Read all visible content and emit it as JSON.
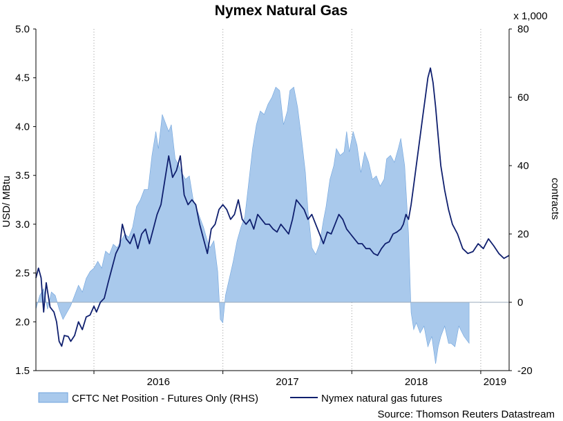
{
  "chart_data": {
    "type": "area+line",
    "title": "Nymex Natural Gas",
    "y_left": {
      "label": "USD/ MBtu",
      "range": [
        1.5,
        5.0
      ],
      "ticks": [
        "1.5",
        "2.0",
        "2.5",
        "3.0",
        "3.5",
        "4.0",
        "4.5",
        "5.0"
      ]
    },
    "y_right": {
      "label": "contracts",
      "multiplier_label": "x 1,000",
      "range": [
        -20,
        80
      ],
      "ticks": [
        "-20",
        "0",
        "20",
        "40",
        "60",
        "80"
      ]
    },
    "x": {
      "range": [
        2015.55,
        2019.22
      ],
      "ticks": [
        "2016",
        "2017",
        "2018",
        "2019"
      ]
    },
    "grid": "dotted vertical lines at year boundaries",
    "legend_position": "bottom",
    "source": "Source: Thomson Reuters Datastream",
    "series": [
      {
        "name": "CFTC Net Position - Futures Only (RHS)",
        "type": "area",
        "axis": "right",
        "color": "#a9c9ec",
        "edge_color": "#6fa3dc",
        "points": [
          [
            2015.55,
            -2
          ],
          [
            2015.58,
            2
          ],
          [
            2015.61,
            4
          ],
          [
            2015.64,
            -2
          ],
          [
            2015.67,
            3
          ],
          [
            2015.7,
            2
          ],
          [
            2015.73,
            -2
          ],
          [
            2015.76,
            -5
          ],
          [
            2015.79,
            -3
          ],
          [
            2015.82,
            -1
          ],
          [
            2015.85,
            2
          ],
          [
            2015.88,
            5
          ],
          [
            2015.91,
            3
          ],
          [
            2015.94,
            7
          ],
          [
            2015.97,
            9
          ],
          [
            2016.0,
            10
          ],
          [
            2016.03,
            12
          ],
          [
            2016.06,
            10
          ],
          [
            2016.09,
            15
          ],
          [
            2016.12,
            14
          ],
          [
            2016.15,
            17
          ],
          [
            2016.18,
            16
          ],
          [
            2016.21,
            18
          ],
          [
            2016.24,
            20
          ],
          [
            2016.27,
            19
          ],
          [
            2016.3,
            22
          ],
          [
            2016.33,
            28
          ],
          [
            2016.36,
            30
          ],
          [
            2016.39,
            33
          ],
          [
            2016.42,
            33
          ],
          [
            2016.45,
            43
          ],
          [
            2016.48,
            50
          ],
          [
            2016.5,
            45
          ],
          [
            2016.53,
            55
          ],
          [
            2016.55,
            53
          ],
          [
            2016.58,
            50
          ],
          [
            2016.6,
            52
          ],
          [
            2016.63,
            42
          ],
          [
            2016.66,
            40
          ],
          [
            2016.68,
            38
          ],
          [
            2016.71,
            36
          ],
          [
            2016.74,
            37
          ],
          [
            2016.77,
            30
          ],
          [
            2016.8,
            27
          ],
          [
            2016.82,
            25
          ],
          [
            2016.85,
            22
          ],
          [
            2016.88,
            18
          ],
          [
            2016.9,
            16
          ],
          [
            2016.93,
            18
          ],
          [
            2016.96,
            9
          ],
          [
            2016.98,
            -5
          ],
          [
            2017.0,
            -6
          ],
          [
            2017.02,
            2
          ],
          [
            2017.05,
            7
          ],
          [
            2017.08,
            12
          ],
          [
            2017.11,
            18
          ],
          [
            2017.14,
            22
          ],
          [
            2017.17,
            25
          ],
          [
            2017.2,
            35
          ],
          [
            2017.23,
            45
          ],
          [
            2017.26,
            52
          ],
          [
            2017.29,
            56
          ],
          [
            2017.32,
            55
          ],
          [
            2017.35,
            58
          ],
          [
            2017.38,
            60
          ],
          [
            2017.41,
            63
          ],
          [
            2017.44,
            62
          ],
          [
            2017.47,
            52
          ],
          [
            2017.5,
            56
          ],
          [
            2017.52,
            62
          ],
          [
            2017.55,
            63
          ],
          [
            2017.58,
            57
          ],
          [
            2017.61,
            48
          ],
          [
            2017.64,
            38
          ],
          [
            2017.66,
            27
          ],
          [
            2017.69,
            16
          ],
          [
            2017.72,
            14
          ],
          [
            2017.75,
            17
          ],
          [
            2017.78,
            24
          ],
          [
            2017.8,
            28
          ],
          [
            2017.83,
            36
          ],
          [
            2017.86,
            40
          ],
          [
            2017.88,
            45
          ],
          [
            2017.91,
            43
          ],
          [
            2017.94,
            44
          ],
          [
            2017.96,
            50
          ],
          [
            2017.98,
            44
          ],
          [
            2018.01,
            50
          ],
          [
            2018.04,
            46
          ],
          [
            2018.07,
            38
          ],
          [
            2018.1,
            44
          ],
          [
            2018.13,
            41
          ],
          [
            2018.16,
            36
          ],
          [
            2018.19,
            37
          ],
          [
            2018.22,
            34
          ],
          [
            2018.25,
            36
          ],
          [
            2018.27,
            42
          ],
          [
            2018.3,
            43
          ],
          [
            2018.33,
            41
          ],
          [
            2018.36,
            45
          ],
          [
            2018.38,
            48
          ],
          [
            2018.41,
            40
          ],
          [
            2018.44,
            20
          ],
          [
            2018.46,
            -3
          ],
          [
            2018.48,
            -8
          ],
          [
            2018.5,
            -6
          ],
          [
            2018.53,
            -9
          ],
          [
            2018.56,
            -7
          ],
          [
            2018.59,
            -13
          ],
          [
            2018.62,
            -10
          ],
          [
            2018.65,
            -18
          ],
          [
            2018.67,
            -13
          ],
          [
            2018.69,
            -10
          ],
          [
            2018.72,
            -7
          ],
          [
            2018.75,
            -12
          ],
          [
            2018.77,
            -12
          ],
          [
            2018.8,
            -13
          ],
          [
            2018.83,
            -7
          ],
          [
            2018.87,
            -10
          ],
          [
            2018.91,
            -12
          ]
        ]
      },
      {
        "name": "Nymex natural gas futures",
        "type": "line",
        "axis": "left",
        "color": "#0f1f6e",
        "points": [
          [
            2015.55,
            2.45
          ],
          [
            2015.57,
            2.55
          ],
          [
            2015.59,
            2.45
          ],
          [
            2015.61,
            2.1
          ],
          [
            2015.63,
            2.4
          ],
          [
            2015.66,
            2.15
          ],
          [
            2015.69,
            2.1
          ],
          [
            2015.71,
            2.0
          ],
          [
            2015.73,
            1.8
          ],
          [
            2015.75,
            1.75
          ],
          [
            2015.77,
            1.86
          ],
          [
            2015.8,
            1.85
          ],
          [
            2015.82,
            1.8
          ],
          [
            2015.85,
            1.86
          ],
          [
            2015.88,
            2.0
          ],
          [
            2015.91,
            1.92
          ],
          [
            2015.94,
            2.05
          ],
          [
            2015.97,
            2.07
          ],
          [
            2016.0,
            2.16
          ],
          [
            2016.02,
            2.1
          ],
          [
            2016.05,
            2.2
          ],
          [
            2016.08,
            2.24
          ],
          [
            2016.11,
            2.4
          ],
          [
            2016.14,
            2.55
          ],
          [
            2016.17,
            2.7
          ],
          [
            2016.2,
            2.78
          ],
          [
            2016.22,
            3.0
          ],
          [
            2016.25,
            2.85
          ],
          [
            2016.28,
            2.8
          ],
          [
            2016.31,
            2.9
          ],
          [
            2016.34,
            2.75
          ],
          [
            2016.37,
            2.9
          ],
          [
            2016.4,
            2.95
          ],
          [
            2016.43,
            2.8
          ],
          [
            2016.46,
            2.95
          ],
          [
            2016.49,
            3.1
          ],
          [
            2016.52,
            3.2
          ],
          [
            2016.55,
            3.45
          ],
          [
            2016.58,
            3.7
          ],
          [
            2016.61,
            3.48
          ],
          [
            2016.64,
            3.55
          ],
          [
            2016.67,
            3.7
          ],
          [
            2016.7,
            3.3
          ],
          [
            2016.73,
            3.2
          ],
          [
            2016.76,
            3.25
          ],
          [
            2016.79,
            3.2
          ],
          [
            2016.82,
            3.0
          ],
          [
            2016.85,
            2.85
          ],
          [
            2016.88,
            2.7
          ],
          [
            2016.91,
            2.95
          ],
          [
            2016.94,
            3.0
          ],
          [
            2016.97,
            3.15
          ],
          [
            2017.0,
            3.2
          ],
          [
            2017.03,
            3.15
          ],
          [
            2017.06,
            3.05
          ],
          [
            2017.09,
            3.1
          ],
          [
            2017.12,
            3.25
          ],
          [
            2017.15,
            3.05
          ],
          [
            2017.18,
            3.0
          ],
          [
            2017.21,
            3.05
          ],
          [
            2017.24,
            2.95
          ],
          [
            2017.27,
            3.1
          ],
          [
            2017.3,
            3.05
          ],
          [
            2017.33,
            3.0
          ],
          [
            2017.36,
            3.0
          ],
          [
            2017.39,
            2.95
          ],
          [
            2017.42,
            2.92
          ],
          [
            2017.45,
            3.0
          ],
          [
            2017.48,
            2.95
          ],
          [
            2017.51,
            2.9
          ],
          [
            2017.54,
            3.05
          ],
          [
            2017.57,
            3.25
          ],
          [
            2017.6,
            3.2
          ],
          [
            2017.63,
            3.15
          ],
          [
            2017.66,
            3.05
          ],
          [
            2017.69,
            3.1
          ],
          [
            2017.72,
            3.0
          ],
          [
            2017.75,
            2.9
          ],
          [
            2017.78,
            2.8
          ],
          [
            2017.81,
            2.92
          ],
          [
            2017.84,
            2.9
          ],
          [
            2017.87,
            3.0
          ],
          [
            2017.9,
            3.1
          ],
          [
            2017.93,
            3.05
          ],
          [
            2017.96,
            2.95
          ],
          [
            2017.99,
            2.9
          ],
          [
            2018.02,
            2.85
          ],
          [
            2018.05,
            2.8
          ],
          [
            2018.08,
            2.8
          ],
          [
            2018.11,
            2.75
          ],
          [
            2018.14,
            2.75
          ],
          [
            2018.17,
            2.7
          ],
          [
            2018.2,
            2.68
          ],
          [
            2018.23,
            2.75
          ],
          [
            2018.26,
            2.8
          ],
          [
            2018.29,
            2.82
          ],
          [
            2018.32,
            2.9
          ],
          [
            2018.35,
            2.92
          ],
          [
            2018.38,
            2.95
          ],
          [
            2018.4,
            3.0
          ],
          [
            2018.42,
            3.1
          ],
          [
            2018.44,
            3.05
          ],
          [
            2018.46,
            3.2
          ],
          [
            2018.48,
            3.4
          ],
          [
            2018.5,
            3.6
          ],
          [
            2018.53,
            3.9
          ],
          [
            2018.55,
            4.1
          ],
          [
            2018.57,
            4.3
          ],
          [
            2018.59,
            4.5
          ],
          [
            2018.61,
            4.6
          ],
          [
            2018.63,
            4.45
          ],
          [
            2018.65,
            4.2
          ],
          [
            2018.67,
            3.9
          ],
          [
            2018.69,
            3.6
          ],
          [
            2018.72,
            3.35
          ],
          [
            2018.75,
            3.15
          ],
          [
            2018.78,
            3.0
          ],
          [
            2018.82,
            2.9
          ],
          [
            2018.86,
            2.75
          ],
          [
            2018.9,
            2.7
          ],
          [
            2018.94,
            2.72
          ],
          [
            2018.98,
            2.8
          ],
          [
            2019.02,
            2.75
          ],
          [
            2019.06,
            2.85
          ],
          [
            2019.1,
            2.78
          ],
          [
            2019.14,
            2.7
          ],
          [
            2019.18,
            2.65
          ],
          [
            2019.22,
            2.68
          ]
        ]
      }
    ]
  }
}
